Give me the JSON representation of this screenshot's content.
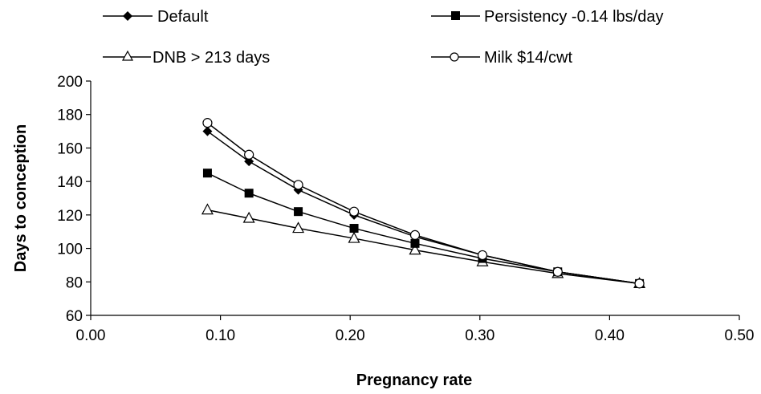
{
  "chart_data": {
    "type": "line",
    "title": "",
    "xlabel": "Pregnancy rate",
    "ylabel": "Days to conception",
    "xlim": [
      0.0,
      0.5
    ],
    "ylim": [
      60,
      200
    ],
    "xticks": [
      "0.00",
      "0.10",
      "0.20",
      "0.30",
      "0.40",
      "0.50"
    ],
    "yticks": [
      "60",
      "80",
      "100",
      "120",
      "140",
      "160",
      "180",
      "200"
    ],
    "grid": false,
    "legend_position": "top",
    "x": [
      0.09,
      0.122,
      0.16,
      0.203,
      0.25,
      0.302,
      0.36,
      0.423
    ],
    "series": [
      {
        "name": "Default",
        "marker": "diamond-filled",
        "values": [
          170,
          152,
          135,
          120,
          107,
          96,
          86,
          79
        ]
      },
      {
        "name": "Persistency -0.14 lbs/day",
        "marker": "square-filled",
        "values": [
          145,
          133,
          122,
          112,
          103,
          94,
          86,
          79
        ]
      },
      {
        "name": "DNB > 213 days",
        "marker": "triangle-open",
        "values": [
          123,
          118,
          112,
          106,
          99,
          92,
          85,
          79
        ]
      },
      {
        "name": "Milk $14/cwt",
        "marker": "circle-open",
        "values": [
          175,
          156,
          138,
          122,
          108,
          96,
          86,
          79
        ]
      }
    ]
  }
}
